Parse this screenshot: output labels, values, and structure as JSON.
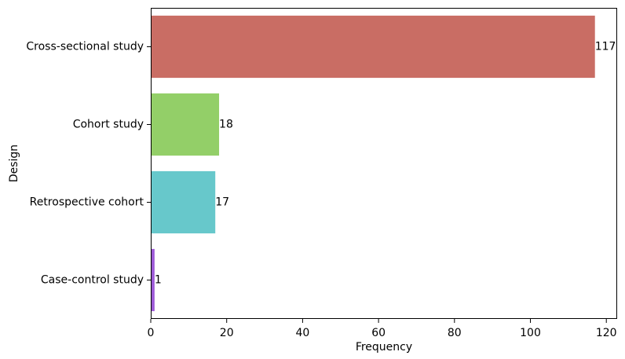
{
  "chart_data": {
    "type": "bar",
    "orientation": "horizontal",
    "title": "",
    "xlabel": "Frequency",
    "ylabel": "Design",
    "categories": [
      "Cross-sectional study",
      "Cohort study",
      "Retrospective cohort",
      "Case-control study"
    ],
    "values": [
      117,
      18,
      17,
      1
    ],
    "data_labels": [
      "117",
      "18",
      "17",
      "1"
    ],
    "colors": [
      "#c96d64",
      "#93cf68",
      "#67c8cb",
      "#9d5ad7"
    ],
    "xlim": [
      0,
      122.85
    ],
    "xticks": [
      0,
      20,
      40,
      60,
      80,
      100,
      120
    ],
    "xtick_labels": [
      "0",
      "20",
      "40",
      "60",
      "80",
      "100",
      "120"
    ],
    "grid": false,
    "legend": "none"
  }
}
